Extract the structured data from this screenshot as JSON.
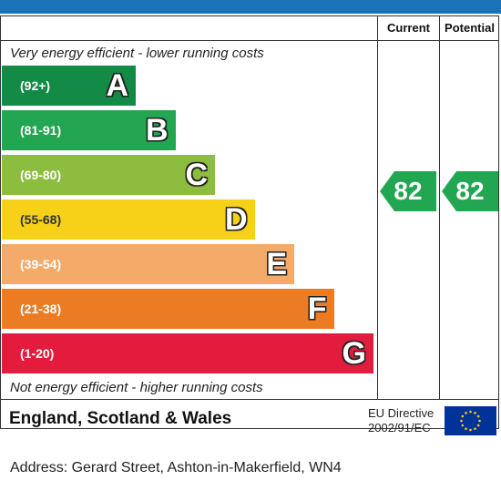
{
  "header": {
    "current_label": "Current",
    "potential_label": "Potential"
  },
  "notes": {
    "top": "Very energy efficient - lower running costs",
    "bottom": "Not energy efficient - higher running costs"
  },
  "chart_data": {
    "type": "bar",
    "categories": [
      "A",
      "B",
      "C",
      "D",
      "E",
      "F",
      "G"
    ],
    "ranges": [
      "(92+)",
      "(81-91)",
      "(69-80)",
      "(55-68)",
      "(39-54)",
      "(21-38)",
      "(1-20)"
    ],
    "colors": [
      "#138a45",
      "#23a651",
      "#8dbd3e",
      "#f7d117",
      "#f4ab6a",
      "#ec7c24",
      "#e31c3d"
    ],
    "current": 82,
    "potential": 82,
    "rating_color": "#23a651"
  },
  "footer": {
    "region": "England, Scotland & Wales",
    "directive_line1": "EU Directive",
    "directive_line2": "2002/91/EC"
  },
  "address": "Address: Gerard Street, Ashton-in-Makerfield, WN4"
}
